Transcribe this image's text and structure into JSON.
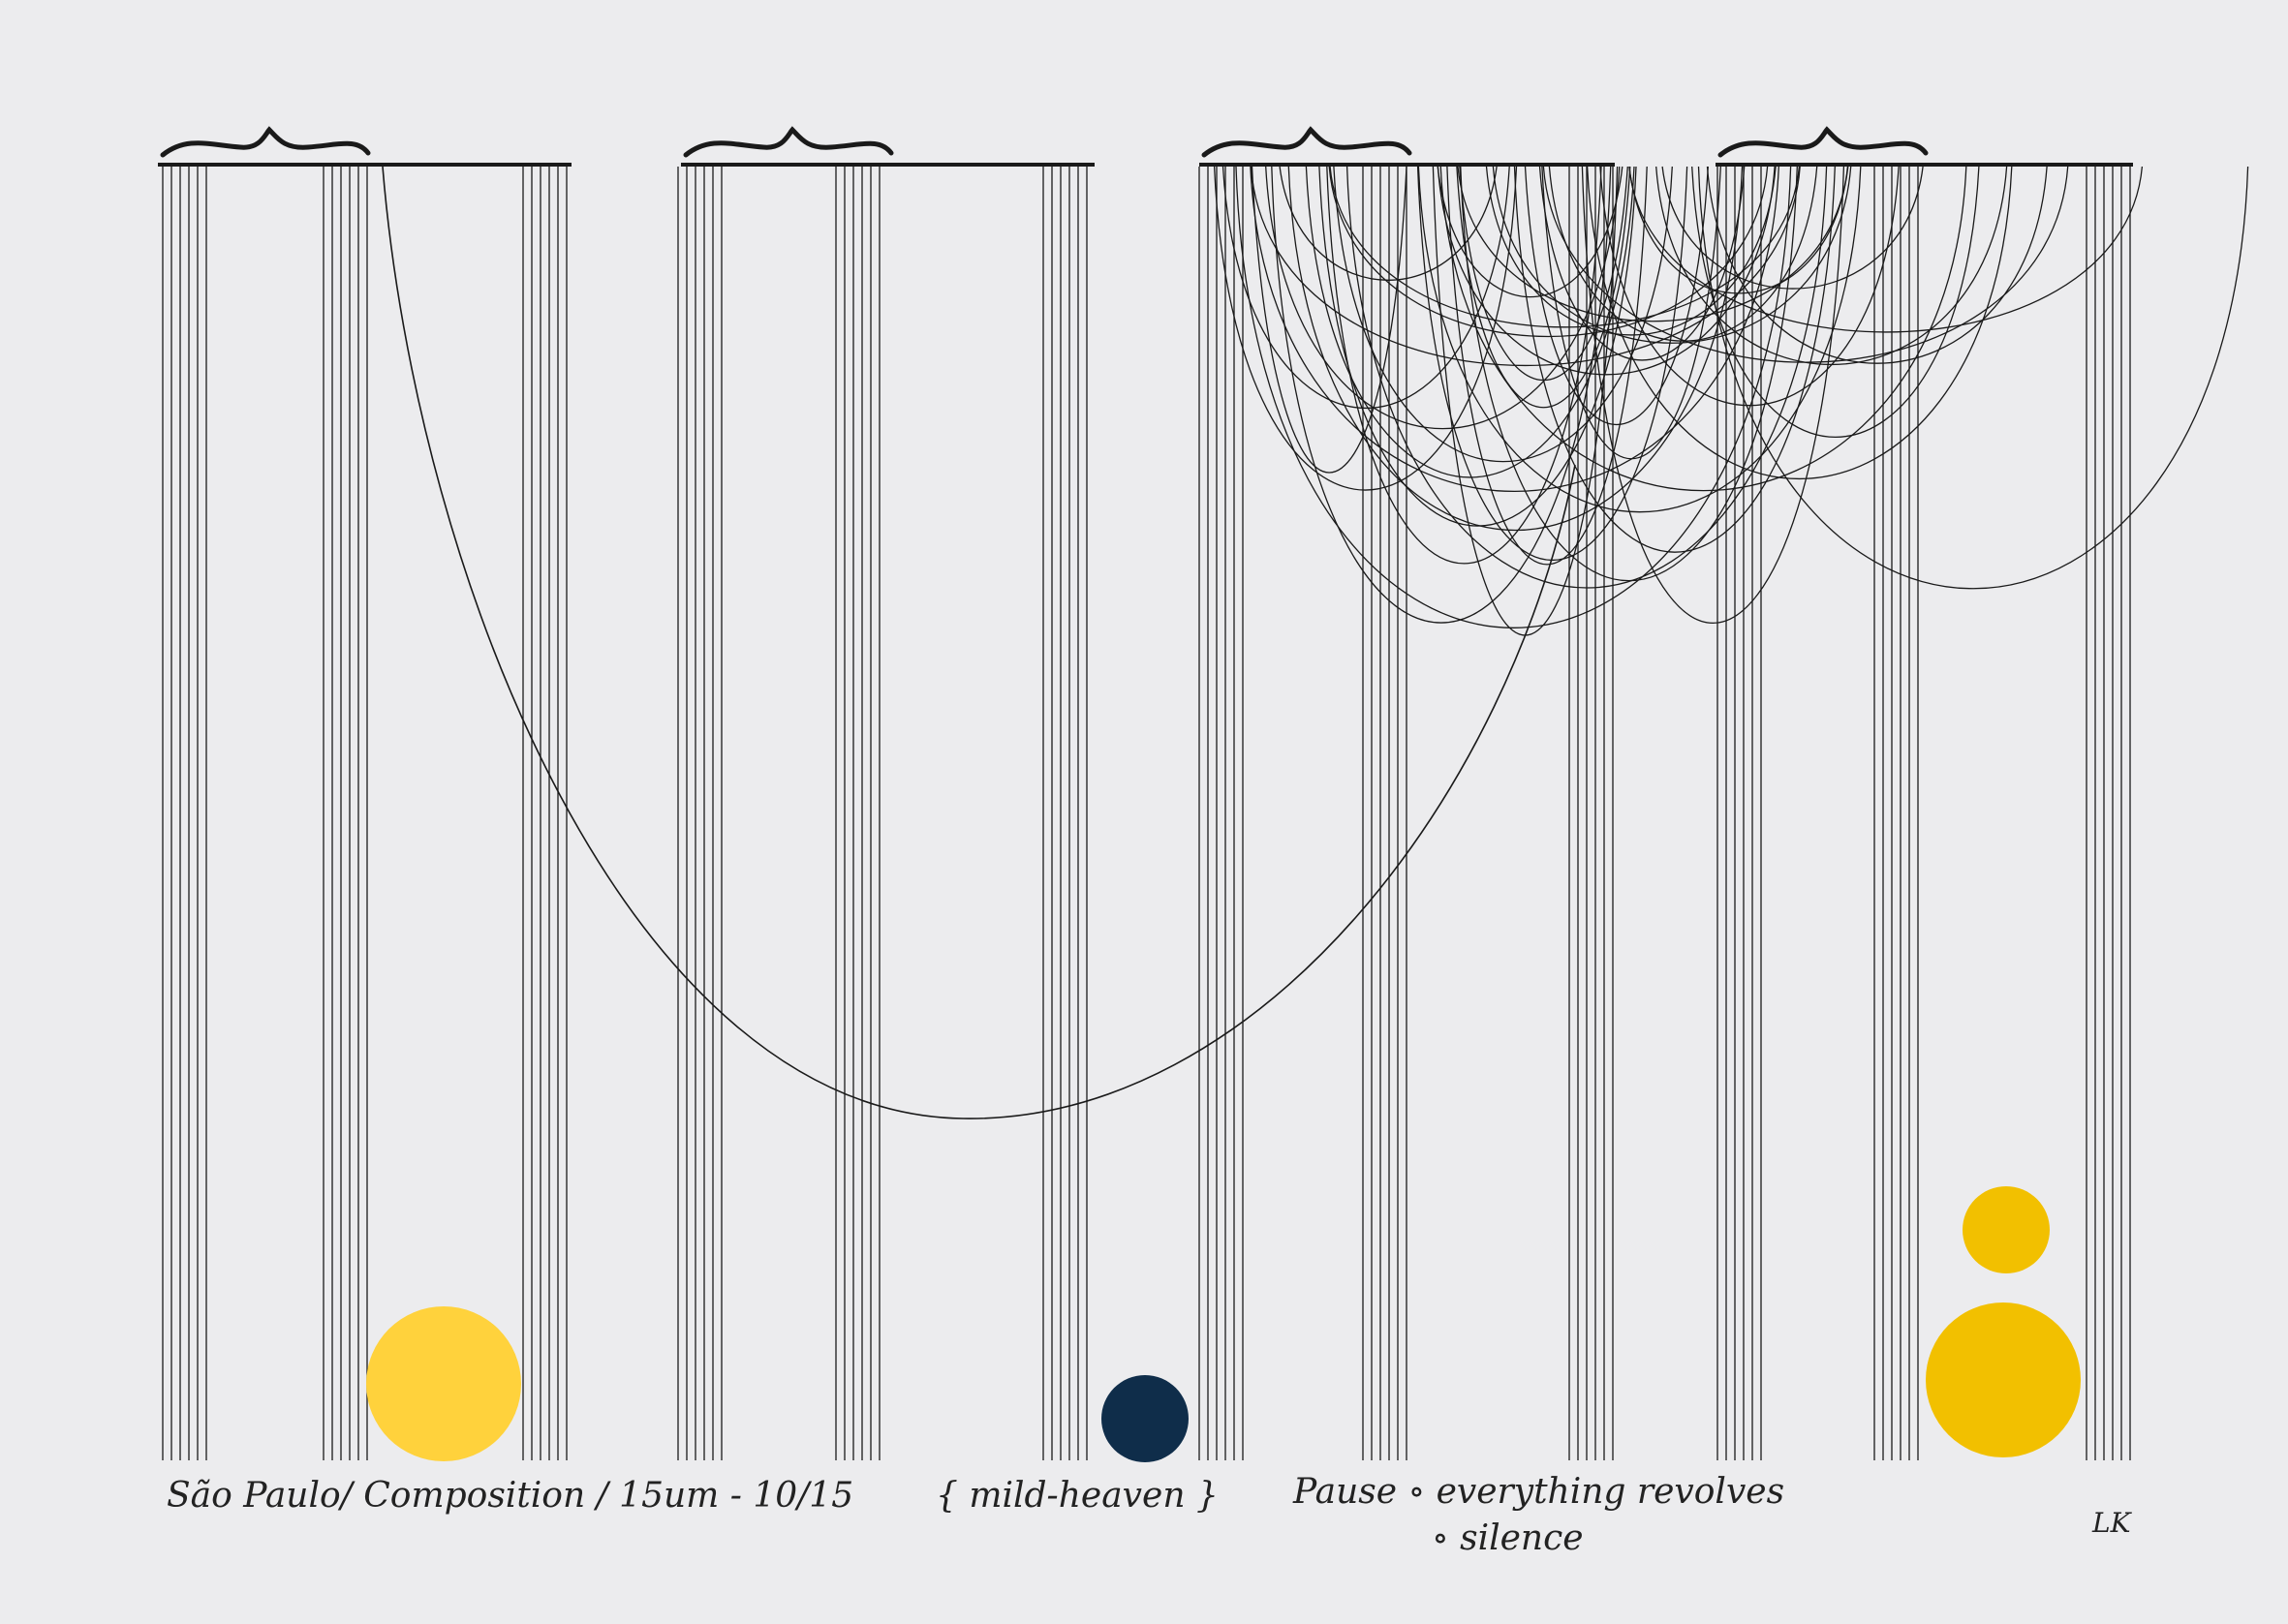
{
  "caption": {
    "title": "São Paulo/ Composition / 15um - 10/15",
    "subtitle": "{ mild-heaven }",
    "note_line1": "Pause ∘ everything revolves",
    "note_line2": "∘ silence",
    "signature": "LK"
  },
  "colors": {
    "paper": "#ececee",
    "ink": "#1a1a1a",
    "yellow": "#ffd23c",
    "navy": "#0f2d4a",
    "gold": "#f2c000"
  }
}
